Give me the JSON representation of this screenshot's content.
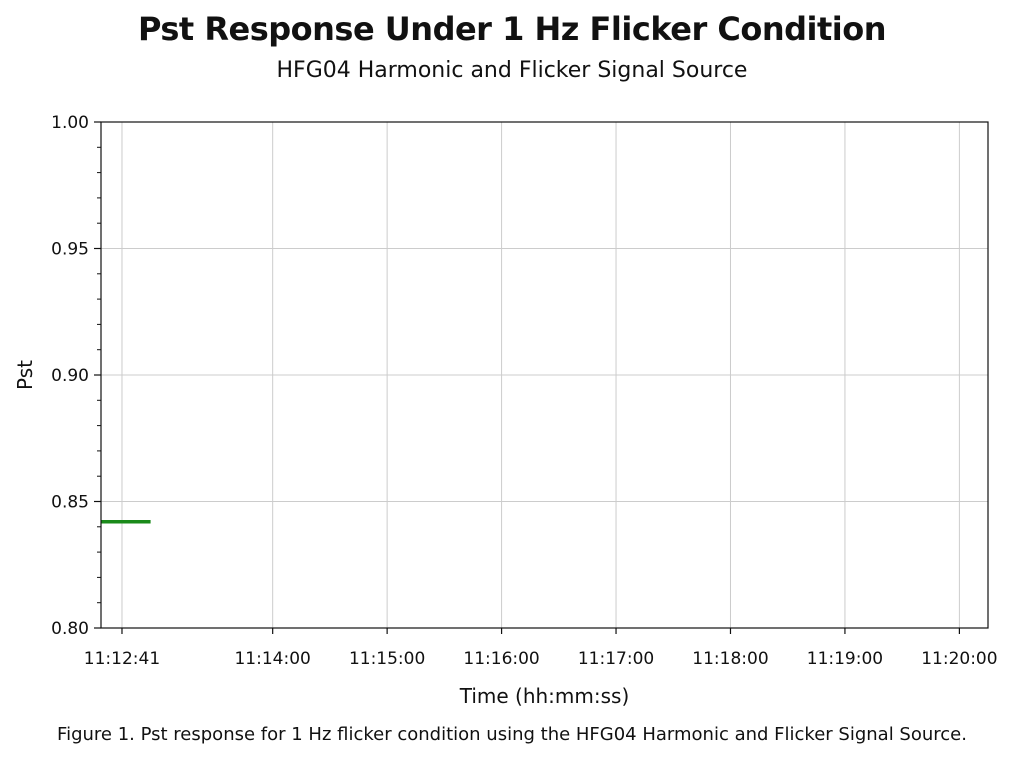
{
  "title": "Pst Response Under 1 Hz Flicker Condition",
  "subtitle": "HFG04 Harmonic and Flicker Signal Source",
  "caption": "Figure 1. Pst response for 1 Hz flicker condition using the HFG04 Harmonic and Flicker Signal Source.",
  "colors": {
    "series": "#1a8a1a",
    "grid": "#cccccc",
    "axis": "#111111"
  },
  "chart_data": {
    "type": "line",
    "xlabel": "Time (hh:mm:ss)",
    "ylabel": "Pst",
    "xlim": [
      "11:12:30",
      "11:20:15"
    ],
    "ylim": [
      0.8,
      1.0
    ],
    "grid": true,
    "x_ticks": [
      "11:12:41",
      "11:14:00",
      "11:15:00",
      "11:16:00",
      "11:17:00",
      "11:18:00",
      "11:19:00",
      "11:20:00"
    ],
    "y_ticks": [
      "0.80",
      "0.85",
      "0.90",
      "0.95",
      "1.00"
    ],
    "series": [
      {
        "x": [
          "11:12:30",
          "11:12:56"
        ],
        "y": [
          0.842,
          0.842
        ]
      }
    ]
  }
}
